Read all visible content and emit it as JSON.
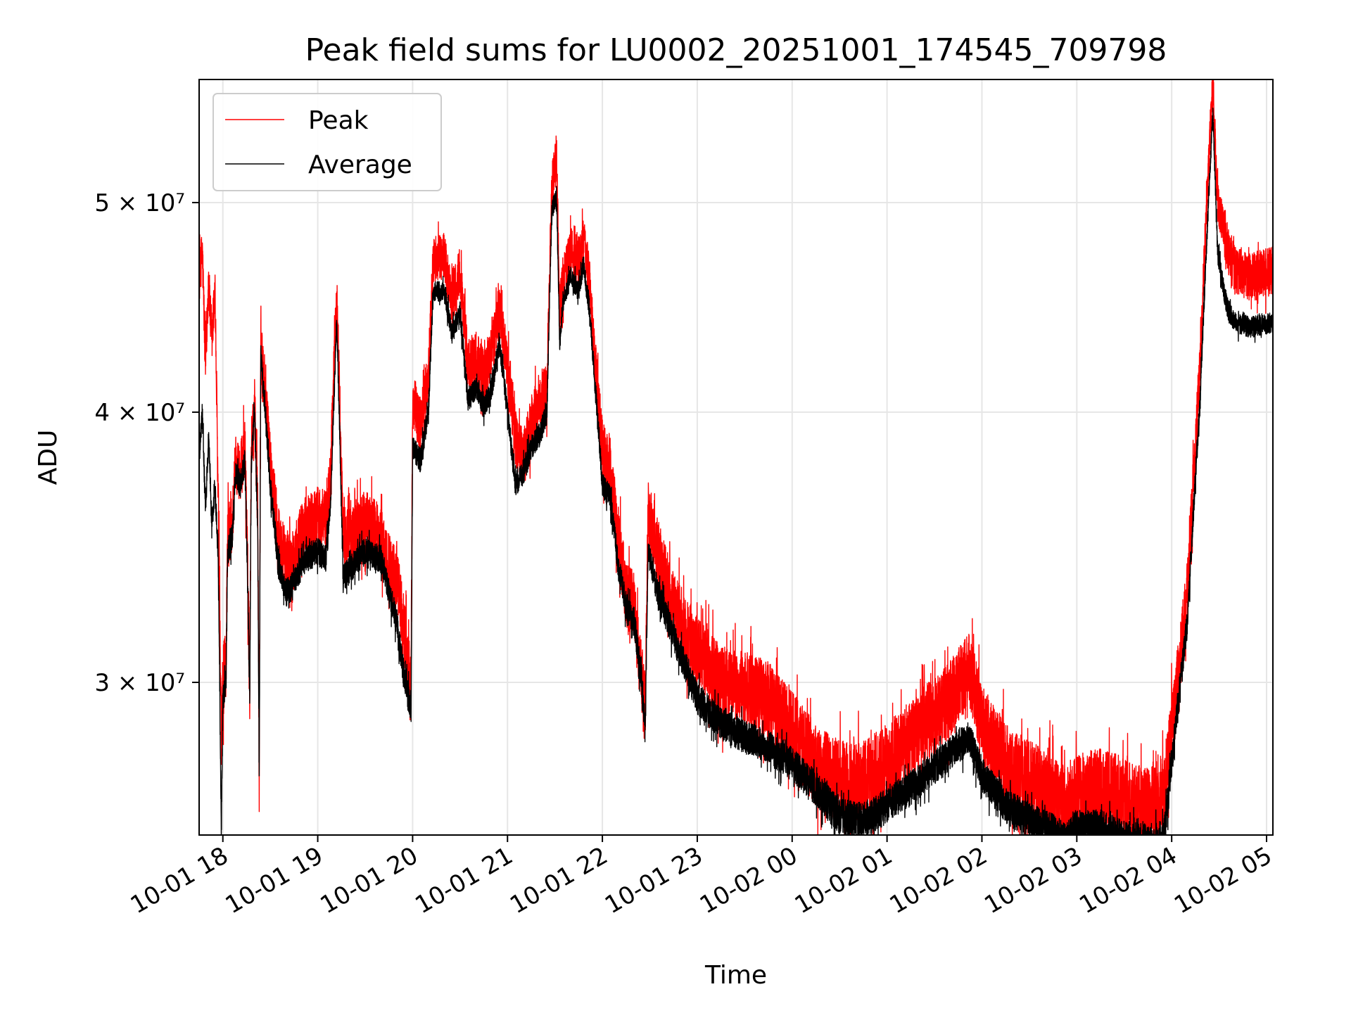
{
  "chart_data": {
    "type": "line",
    "title": "Peak field sums for LU0002_20251001_174545_709798",
    "xlabel": "Time",
    "ylabel": "ADU",
    "x_scale": "time",
    "y_scale": "log",
    "xlim": [
      "2025-10-01 17:45",
      "2025-10-02 05:04"
    ],
    "ylim": [
      25500000,
      57000000
    ],
    "grid": true,
    "legend_position": "upper-left",
    "x_ticks": [
      {
        "time": "2025-10-01 18:00",
        "label": "10-01 18"
      },
      {
        "time": "2025-10-01 19:00",
        "label": "10-01 19"
      },
      {
        "time": "2025-10-01 20:00",
        "label": "10-01 20"
      },
      {
        "time": "2025-10-01 21:00",
        "label": "10-01 21"
      },
      {
        "time": "2025-10-01 22:00",
        "label": "10-01 22"
      },
      {
        "time": "2025-10-01 23:00",
        "label": "10-01 23"
      },
      {
        "time": "2025-10-02 00:00",
        "label": "10-02 00"
      },
      {
        "time": "2025-10-02 01:00",
        "label": "10-02 01"
      },
      {
        "time": "2025-10-02 02:00",
        "label": "10-02 02"
      },
      {
        "time": "2025-10-02 03:00",
        "label": "10-02 03"
      },
      {
        "time": "2025-10-02 04:00",
        "label": "10-02 04"
      },
      {
        "time": "2025-10-02 05:00",
        "label": "10-02 05"
      }
    ],
    "y_ticks": [
      {
        "value": 30000000,
        "label": "3 × 10⁷"
      },
      {
        "value": 40000000,
        "label": "4 × 10⁷"
      },
      {
        "value": 50000000,
        "label": "5 × 10⁷"
      }
    ],
    "series": [
      {
        "name": "Peak",
        "color": "#ff0000",
        "noise": 1200000,
        "points": [
          [
            "2025-10-01 17:45",
            46000000
          ],
          [
            "2025-10-01 17:47",
            47500000
          ],
          [
            "2025-10-01 17:49",
            42000000
          ],
          [
            "2025-10-01 17:51",
            46000000
          ],
          [
            "2025-10-01 17:53",
            43000000
          ],
          [
            "2025-10-01 17:55",
            45500000
          ],
          [
            "2025-10-01 17:57",
            36500000
          ],
          [
            "2025-10-01 17:59",
            28000000
          ],
          [
            "2025-10-01 18:00",
            30000000
          ],
          [
            "2025-10-01 18:02",
            30500000
          ],
          [
            "2025-10-01 18:03",
            35000000
          ],
          [
            "2025-10-01 18:06",
            35500000
          ],
          [
            "2025-10-01 18:08",
            38000000
          ],
          [
            "2025-10-01 18:11",
            37500000
          ],
          [
            "2025-10-01 18:14",
            38500000
          ],
          [
            "2025-10-01 18:17",
            30000000
          ],
          [
            "2025-10-01 18:18",
            38500000
          ],
          [
            "2025-10-01 18:20",
            40500000
          ],
          [
            "2025-10-01 18:22",
            36000000
          ],
          [
            "2025-10-01 18:23",
            27000000
          ],
          [
            "2025-10-01 18:24",
            43000000
          ],
          [
            "2025-10-01 18:30",
            38000000
          ],
          [
            "2025-10-01 18:35",
            35000000
          ],
          [
            "2025-10-01 18:40",
            34000000
          ],
          [
            "2025-10-01 18:45",
            34300000
          ],
          [
            "2025-10-01 18:50",
            35200000
          ],
          [
            "2025-10-01 18:55",
            35500000
          ],
          [
            "2025-10-01 19:00",
            35800000
          ],
          [
            "2025-10-01 19:05",
            35700000
          ],
          [
            "2025-10-01 19:08",
            37200000
          ],
          [
            "2025-10-01 19:12",
            45500000
          ],
          [
            "2025-10-01 19:16",
            35000000
          ],
          [
            "2025-10-01 19:20",
            35000000
          ],
          [
            "2025-10-01 19:30",
            35600000
          ],
          [
            "2025-10-01 19:40",
            35000000
          ],
          [
            "2025-10-01 19:45",
            34000000
          ],
          [
            "2025-10-01 19:50",
            33500000
          ],
          [
            "2025-10-01 19:55",
            31500000
          ],
          [
            "2025-10-01 19:59",
            29500000
          ],
          [
            "2025-10-01 20:00",
            40500000
          ],
          [
            "2025-10-01 20:05",
            39500000
          ],
          [
            "2025-10-01 20:10",
            41500000
          ],
          [
            "2025-10-01 20:13",
            47000000
          ],
          [
            "2025-10-01 20:20",
            47200000
          ],
          [
            "2025-10-01 20:25",
            45000000
          ],
          [
            "2025-10-01 20:30",
            46500000
          ],
          [
            "2025-10-01 20:35",
            42000000
          ],
          [
            "2025-10-01 20:40",
            42500000
          ],
          [
            "2025-10-01 20:45",
            41500000
          ],
          [
            "2025-10-01 20:50",
            42800000
          ],
          [
            "2025-10-01 20:55",
            44500000
          ],
          [
            "2025-10-01 21:00",
            42000000
          ],
          [
            "2025-10-01 21:05",
            39000000
          ],
          [
            "2025-10-01 21:10",
            38000000
          ],
          [
            "2025-10-01 21:15",
            39500000
          ],
          [
            "2025-10-01 21:20",
            40500000
          ],
          [
            "2025-10-01 21:25",
            41000000
          ],
          [
            "2025-10-01 21:28",
            51000000
          ],
          [
            "2025-10-01 21:31",
            52500000
          ],
          [
            "2025-10-01 21:33",
            44500000
          ],
          [
            "2025-10-01 21:35",
            46000000
          ],
          [
            "2025-10-01 21:40",
            47500000
          ],
          [
            "2025-10-01 21:45",
            47000000
          ],
          [
            "2025-10-01 21:48",
            48000000
          ],
          [
            "2025-10-01 21:52",
            46000000
          ],
          [
            "2025-10-01 21:55",
            42500000
          ],
          [
            "2025-10-01 22:00",
            38500000
          ],
          [
            "2025-10-01 22:05",
            37500000
          ],
          [
            "2025-10-01 22:10",
            35000000
          ],
          [
            "2025-10-01 22:15",
            33000000
          ],
          [
            "2025-10-01 22:20",
            32500000
          ],
          [
            "2025-10-01 22:25",
            30000000
          ],
          [
            "2025-10-01 22:27",
            29000000
          ],
          [
            "2025-10-01 22:29",
            36000000
          ],
          [
            "2025-10-01 22:35",
            34500000
          ],
          [
            "2025-10-01 22:45",
            32500000
          ],
          [
            "2025-10-01 23:00",
            31000000
          ],
          [
            "2025-10-01 23:15",
            30000000
          ],
          [
            "2025-10-01 23:30",
            29800000
          ],
          [
            "2025-10-01 23:45",
            29500000
          ],
          [
            "2025-10-02 00:00",
            28500000
          ],
          [
            "2025-10-02 00:15",
            27500000
          ],
          [
            "2025-10-02 00:30",
            27000000
          ],
          [
            "2025-10-02 00:45",
            27000000
          ],
          [
            "2025-10-02 01:00",
            27500000
          ],
          [
            "2025-10-02 01:20",
            28500000
          ],
          [
            "2025-10-02 01:40",
            29500000
          ],
          [
            "2025-10-02 01:52",
            30500000
          ],
          [
            "2025-10-02 02:00",
            28800000
          ],
          [
            "2025-10-02 02:15",
            27500000
          ],
          [
            "2025-10-02 02:30",
            27000000
          ],
          [
            "2025-10-02 02:45",
            26600000
          ],
          [
            "2025-10-02 02:53",
            26200000
          ],
          [
            "2025-10-02 03:00",
            26600000
          ],
          [
            "2025-10-02 03:15",
            26800000
          ],
          [
            "2025-10-02 03:30",
            26500000
          ],
          [
            "2025-10-02 03:45",
            26300000
          ],
          [
            "2025-10-02 03:55",
            26500000
          ],
          [
            "2025-10-02 04:00",
            28500000
          ],
          [
            "2025-10-02 04:10",
            33000000
          ],
          [
            "2025-10-02 04:18",
            42000000
          ],
          [
            "2025-10-02 04:23",
            51500000
          ],
          [
            "2025-10-02 04:26",
            57000000
          ],
          [
            "2025-10-02 04:29",
            50000000
          ],
          [
            "2025-10-02 04:33",
            48500000
          ],
          [
            "2025-10-02 04:36",
            47500000
          ],
          [
            "2025-10-02 04:40",
            46500000
          ],
          [
            "2025-10-02 04:50",
            46200000
          ],
          [
            "2025-10-02 05:04",
            46500000
          ]
        ]
      },
      {
        "name": "Average",
        "color": "#000000",
        "noise": 500000,
        "points": [
          [
            "2025-10-01 17:45",
            38000000
          ],
          [
            "2025-10-01 17:47",
            40000000
          ],
          [
            "2025-10-01 17:49",
            36000000
          ],
          [
            "2025-10-01 17:51",
            39000000
          ],
          [
            "2025-10-01 17:53",
            35500000
          ],
          [
            "2025-10-01 17:55",
            37000000
          ],
          [
            "2025-10-01 17:57",
            34500000
          ],
          [
            "2025-10-01 17:59",
            25600000
          ],
          [
            "2025-10-01 18:00",
            29500000
          ],
          [
            "2025-10-01 18:02",
            30000000
          ],
          [
            "2025-10-01 18:03",
            34500000
          ],
          [
            "2025-10-01 18:06",
            35000000
          ],
          [
            "2025-10-01 18:08",
            37500000
          ],
          [
            "2025-10-01 18:11",
            37000000
          ],
          [
            "2025-10-01 18:14",
            38000000
          ],
          [
            "2025-10-01 18:17",
            29500000
          ],
          [
            "2025-10-01 18:18",
            38000000
          ],
          [
            "2025-10-01 18:20",
            40000000
          ],
          [
            "2025-10-01 18:22",
            35500000
          ],
          [
            "2025-10-01 18:23",
            26800000
          ],
          [
            "2025-10-01 18:24",
            42500000
          ],
          [
            "2025-10-01 18:30",
            37000000
          ],
          [
            "2025-10-01 18:35",
            34000000
          ],
          [
            "2025-10-01 18:40",
            33000000
          ],
          [
            "2025-10-01 18:45",
            33300000
          ],
          [
            "2025-10-01 18:50",
            34000000
          ],
          [
            "2025-10-01 18:55",
            34300000
          ],
          [
            "2025-10-01 19:00",
            34500000
          ],
          [
            "2025-10-01 19:05",
            34200000
          ],
          [
            "2025-10-01 19:08",
            36000000
          ],
          [
            "2025-10-01 19:12",
            44000000
          ],
          [
            "2025-10-01 19:16",
            33500000
          ],
          [
            "2025-10-01 19:20",
            33800000
          ],
          [
            "2025-10-01 19:30",
            34500000
          ],
          [
            "2025-10-01 19:40",
            34200000
          ],
          [
            "2025-10-01 19:45",
            33000000
          ],
          [
            "2025-10-01 19:50",
            32000000
          ],
          [
            "2025-10-01 19:55",
            30000000
          ],
          [
            "2025-10-01 19:59",
            29200000
          ],
          [
            "2025-10-01 20:00",
            38500000
          ],
          [
            "2025-10-01 20:05",
            38000000
          ],
          [
            "2025-10-01 20:10",
            40000000
          ],
          [
            "2025-10-01 20:13",
            45500000
          ],
          [
            "2025-10-01 20:20",
            45500000
          ],
          [
            "2025-10-01 20:25",
            43500000
          ],
          [
            "2025-10-01 20:30",
            44500000
          ],
          [
            "2025-10-01 20:35",
            40500000
          ],
          [
            "2025-10-01 20:40",
            41000000
          ],
          [
            "2025-10-01 20:45",
            40200000
          ],
          [
            "2025-10-01 20:50",
            41000000
          ],
          [
            "2025-10-01 20:55",
            43000000
          ],
          [
            "2025-10-01 21:00",
            40000000
          ],
          [
            "2025-10-01 21:05",
            37000000
          ],
          [
            "2025-10-01 21:10",
            37500000
          ],
          [
            "2025-10-01 21:15",
            38500000
          ],
          [
            "2025-10-01 21:20",
            39000000
          ],
          [
            "2025-10-01 21:25",
            40000000
          ],
          [
            "2025-10-01 21:28",
            49500000
          ],
          [
            "2025-10-01 21:31",
            50500000
          ],
          [
            "2025-10-01 21:33",
            43000000
          ],
          [
            "2025-10-01 21:35",
            45000000
          ],
          [
            "2025-10-01 21:40",
            46200000
          ],
          [
            "2025-10-01 21:45",
            45500000
          ],
          [
            "2025-10-01 21:48",
            46800000
          ],
          [
            "2025-10-01 21:52",
            44500000
          ],
          [
            "2025-10-01 21:55",
            41500000
          ],
          [
            "2025-10-01 22:00",
            37000000
          ],
          [
            "2025-10-01 22:05",
            36500000
          ],
          [
            "2025-10-01 22:10",
            34000000
          ],
          [
            "2025-10-01 22:15",
            32500000
          ],
          [
            "2025-10-01 22:20",
            32000000
          ],
          [
            "2025-10-01 22:25",
            30000000
          ],
          [
            "2025-10-01 22:27",
            28500000
          ],
          [
            "2025-10-01 22:29",
            34500000
          ],
          [
            "2025-10-01 22:35",
            33000000
          ],
          [
            "2025-10-01 22:45",
            31500000
          ],
          [
            "2025-10-01 23:00",
            29500000
          ],
          [
            "2025-10-01 23:15",
            28700000
          ],
          [
            "2025-10-01 23:30",
            28300000
          ],
          [
            "2025-10-01 23:45",
            28000000
          ],
          [
            "2025-10-02 00:00",
            27500000
          ],
          [
            "2025-10-02 00:15",
            26800000
          ],
          [
            "2025-10-02 00:30",
            26000000
          ],
          [
            "2025-10-02 00:45",
            25900000
          ],
          [
            "2025-10-02 01:00",
            26300000
          ],
          [
            "2025-10-02 01:20",
            27000000
          ],
          [
            "2025-10-02 01:40",
            27800000
          ],
          [
            "2025-10-02 01:52",
            28300000
          ],
          [
            "2025-10-02 02:00",
            27200000
          ],
          [
            "2025-10-02 02:15",
            26300000
          ],
          [
            "2025-10-02 02:30",
            25900000
          ],
          [
            "2025-10-02 02:45",
            25600000
          ],
          [
            "2025-10-02 02:53",
            25300000
          ],
          [
            "2025-10-02 03:00",
            25700000
          ],
          [
            "2025-10-02 03:15",
            25700000
          ],
          [
            "2025-10-02 03:30",
            25400000
          ],
          [
            "2025-10-02 03:45",
            25300000
          ],
          [
            "2025-10-02 03:55",
            25400000
          ],
          [
            "2025-10-02 04:00",
            27500000
          ],
          [
            "2025-10-02 04:10",
            32000000
          ],
          [
            "2025-10-02 04:18",
            40500000
          ],
          [
            "2025-10-02 04:23",
            49500000
          ],
          [
            "2025-10-02 04:26",
            55000000
          ],
          [
            "2025-10-02 04:29",
            47500000
          ],
          [
            "2025-10-02 04:33",
            45500000
          ],
          [
            "2025-10-02 04:36",
            44500000
          ],
          [
            "2025-10-02 04:40",
            44000000
          ],
          [
            "2025-10-02 04:50",
            43800000
          ],
          [
            "2025-10-02 05:04",
            44000000
          ]
        ]
      }
    ]
  }
}
